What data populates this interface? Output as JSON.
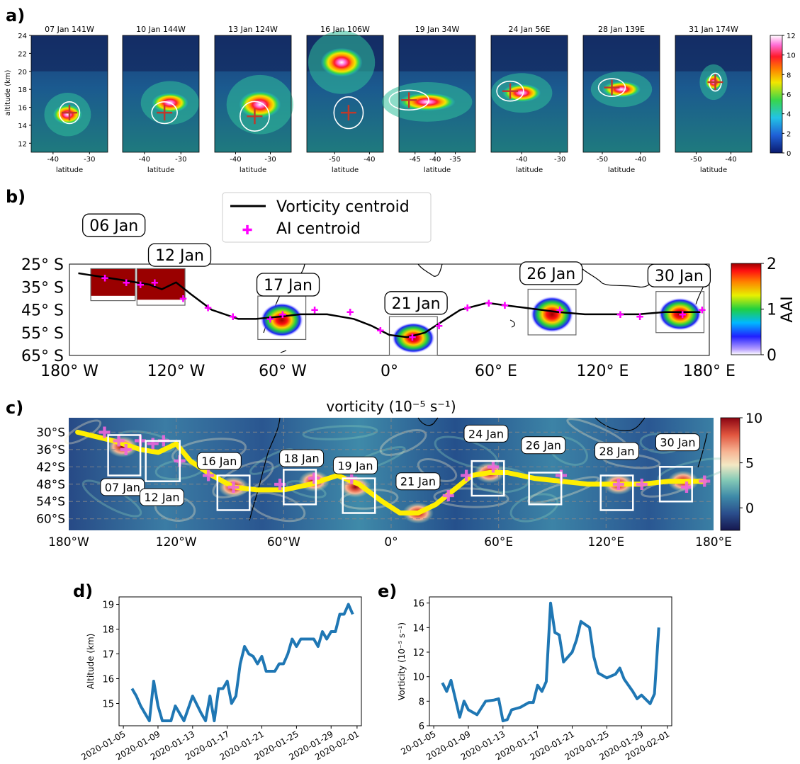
{
  "panel_labels": [
    "a)",
    "b)",
    "c)",
    "d)",
    "e)"
  ],
  "colors": {
    "line_blue": "#1f77b4",
    "track_yellow": "#ffee00",
    "ai_magenta": "#ff00ff",
    "cross_red": "#c0392b"
  },
  "chart_data": [
    {
      "id": "a",
      "type": "heatmap",
      "ylabel": "altitude (km)",
      "xlabel": "latitude",
      "ylim": [
        11,
        24
      ],
      "yticks": [
        12,
        14,
        16,
        18,
        20,
        22,
        24
      ],
      "colorbar": {
        "ticks": [
          0,
          2,
          4,
          6,
          8,
          10,
          12
        ]
      },
      "subplots": [
        {
          "title": "07 Jan   141W",
          "xlim": [
            -46,
            -25
          ],
          "xticks": [
            -40,
            -30
          ],
          "cross": [
            -35.5,
            15.4
          ],
          "plume": [
            -36,
            15.2,
            4,
            1.1
          ]
        },
        {
          "title": "10 Jan   144W",
          "xlim": [
            -46,
            -25
          ],
          "xticks": [
            -40,
            -30
          ],
          "cross": [
            -34.5,
            15.4
          ],
          "plume": [
            -33,
            16.5,
            5,
            1.1
          ]
        },
        {
          "title": "13 Jan   124W",
          "xlim": [
            -46,
            -24
          ],
          "xticks": [
            -40,
            -30
          ],
          "cross": [
            -34.5,
            15.0
          ],
          "plume": [
            -33,
            16.3,
            6,
            1.5
          ]
        },
        {
          "title": "16 Jan   106W",
          "xlim": [
            -58,
            -36
          ],
          "xticks": [
            -50,
            -40
          ],
          "cross": [
            -46,
            15.4
          ],
          "plume": [
            -48,
            21,
            6,
            1.6
          ]
        },
        {
          "title": "19 Jan   34W",
          "xlim": [
            -49,
            -30
          ],
          "xticks": [
            -45,
            -40,
            -35
          ],
          "cross": [
            -46.5,
            16.8
          ],
          "plume": [
            -42,
            16.6,
            7,
            1.0
          ]
        },
        {
          "title": "24 Jan   56E",
          "xlim": [
            -48,
            -28
          ],
          "xticks": [
            -40,
            -30
          ],
          "cross": [
            -43,
            17.8
          ],
          "plume": [
            -40,
            17.6,
            5,
            1.0
          ]
        },
        {
          "title": "28 Jan   139E",
          "xlim": [
            -55,
            -35
          ],
          "xticks": [
            -50,
            -40
          ],
          "cross": [
            -47.5,
            18.2
          ],
          "plume": [
            -45,
            18.0,
            5,
            0.9
          ]
        },
        {
          "title": "31 Jan   174W",
          "xlim": [
            -56,
            -34
          ],
          "xticks": [
            -50,
            -40
          ],
          "cross": [
            -44.5,
            18.8
          ],
          "plume": [
            -45,
            18.8,
            2.5,
            0.9
          ]
        }
      ]
    },
    {
      "id": "b",
      "type": "line",
      "xticks": [
        "180° W",
        "120° W",
        "60° W",
        "0°",
        "60° E",
        "120° E",
        "180° E"
      ],
      "yticks": [
        "25° S",
        "35° S",
        "45° S",
        "55° S",
        "65° S"
      ],
      "xlim": [
        -180,
        180
      ],
      "ylim": [
        -65,
        -25
      ],
      "legend": {
        "placement": "top-center",
        "entries": [
          "Vorticity centroid",
          "AI centroid"
        ]
      },
      "colorbar": {
        "label": "AAI",
        "ticks": [
          0,
          1,
          2
        ]
      },
      "series": [
        {
          "name": "Vorticity centroid",
          "x": [
            -175,
            -150,
            -135,
            -128,
            -120,
            -112,
            -100,
            -85,
            -75,
            -62,
            -50,
            -35,
            -20,
            -10,
            0,
            10,
            20,
            30,
            40,
            50,
            55,
            65,
            75,
            85,
            95,
            110,
            125,
            140,
            155,
            165,
            175
          ],
          "y": [
            -29,
            -32,
            -34,
            -36,
            -33,
            -38,
            -45,
            -49,
            -49,
            -48,
            -47,
            -47,
            -49,
            -52,
            -56,
            -57,
            -55,
            -50,
            -45,
            -43,
            -42,
            -43,
            -44,
            -45,
            -46,
            -47,
            -47,
            -47,
            -46,
            -46,
            -46
          ]
        },
        {
          "name": "AI centroid",
          "x": [
            -160,
            -148,
            -140,
            -132,
            -116,
            -102,
            -88,
            -67,
            -60,
            -42,
            -22,
            -5,
            13,
            28,
            44,
            56,
            65,
            96,
            130,
            141,
            165,
            176
          ],
          "y": [
            -31,
            -33,
            -34,
            -33,
            -40,
            -44,
            -48,
            -49,
            -47,
            -45,
            -46,
            -54,
            -57,
            -52,
            -44,
            -42,
            -43,
            -45,
            -47,
            -48,
            -47,
            -45
          ]
        }
      ],
      "date_labels": [
        {
          "text": "06 Jan",
          "x": -155,
          "y": -8
        },
        {
          "text": "12 Jan",
          "x": -118,
          "y": -21
        },
        {
          "text": "17 Jan",
          "x": -57,
          "y": -34
        },
        {
          "text": "21 Jan",
          "x": 15,
          "y": -42
        },
        {
          "text": "26 Jan",
          "x": 91,
          "y": -29
        },
        {
          "text": "30 Jan",
          "x": 163,
          "y": -30
        }
      ],
      "boxes": [
        {
          "lon": [
            -168,
            -143
          ],
          "lat": [
            -27,
            -41
          ]
        },
        {
          "lon": [
            -142,
            -115
          ],
          "lat": [
            -27,
            -43
          ]
        },
        {
          "lon": [
            -74,
            -47
          ],
          "lat": [
            -39,
            -58
          ]
        },
        {
          "lon": [
            0,
            27
          ],
          "lat": [
            -48,
            -65
          ]
        },
        {
          "lon": [
            78,
            105
          ],
          "lat": [
            -36,
            -56
          ]
        },
        {
          "lon": [
            150,
            177
          ],
          "lat": [
            -37,
            -55
          ]
        }
      ]
    },
    {
      "id": "c",
      "type": "heatmap",
      "title": "vorticity (10⁻⁵ s⁻¹)",
      "xticks": [
        "180°W",
        "120°W",
        "60°W",
        "0°",
        "60°E",
        "120°E",
        "180°E"
      ],
      "yticks": [
        "30°S",
        "36°S",
        "42°S",
        "48°S",
        "54°S",
        "60°S"
      ],
      "xlim": [
        -180,
        180
      ],
      "ylim": [
        -64,
        -25
      ],
      "colorbar": {
        "ticks": [
          10,
          5,
          0
        ]
      },
      "track": {
        "x": [
          -175,
          -155,
          -140,
          -130,
          -120,
          -112,
          -100,
          -88,
          -75,
          -60,
          -45,
          -30,
          -18,
          -5,
          5,
          15,
          25,
          35,
          45,
          55,
          65,
          80,
          95,
          110,
          125,
          140,
          155,
          165,
          175
        ],
        "y": [
          -30,
          -33,
          -36,
          -37,
          -34,
          -40,
          -45,
          -49,
          -50,
          -50,
          -48,
          -45,
          -48,
          -54,
          -58,
          -58,
          -55,
          -50,
          -45,
          -44,
          -44,
          -46,
          -47,
          -48,
          -48,
          -48,
          -47,
          -47,
          -47
        ]
      },
      "crosses": {
        "x": [
          -160,
          -152,
          -148,
          -140,
          -133,
          -127,
          -118,
          -102,
          -88,
          -62,
          -43,
          -22,
          32,
          42,
          57,
          95,
          127,
          140,
          165,
          175
        ],
        "y": [
          -30,
          -33,
          -36,
          -33,
          -34,
          -33,
          -40,
          -45,
          -49,
          -48,
          -46,
          -46,
          -52,
          -45,
          -42,
          -45,
          -48,
          -48,
          -49,
          -47
        ]
      },
      "date_labels": [
        {
          "text": "07 Jan",
          "x": -150,
          "y": -49
        },
        {
          "text": "12 Jan",
          "x": -128,
          "y": -52.5
        },
        {
          "text": "16 Jan",
          "x": -96,
          "y": -40
        },
        {
          "text": "18 Jan",
          "x": -50,
          "y": -39
        },
        {
          "text": "19 Jan",
          "x": -20,
          "y": -41.5
        },
        {
          "text": "21 Jan",
          "x": 15,
          "y": -47
        },
        {
          "text": "24 Jan",
          "x": 53,
          "y": -30.5
        },
        {
          "text": "26 Jan",
          "x": 85,
          "y": -34.5
        },
        {
          "text": "28 Jan",
          "x": 126,
          "y": -36.5
        },
        {
          "text": "30 Jan",
          "x": 160,
          "y": -33.5
        }
      ],
      "boxes": [
        {
          "lon": [
            -158,
            -140
          ],
          "lat": [
            -31,
            -45
          ]
        },
        {
          "lon": [
            -137,
            -118
          ],
          "lat": [
            -33,
            -47
          ]
        },
        {
          "lon": [
            -97,
            -79
          ],
          "lat": [
            -45,
            -57
          ]
        },
        {
          "lon": [
            -60,
            -42
          ],
          "lat": [
            -43,
            -55
          ]
        },
        {
          "lon": [
            -27,
            -9
          ],
          "lat": [
            -46,
            -58
          ]
        },
        {
          "lon": [
            45,
            63
          ],
          "lat": [
            -40,
            -52
          ]
        },
        {
          "lon": [
            77,
            95
          ],
          "lat": [
            -44,
            -55
          ]
        },
        {
          "lon": [
            117,
            135
          ],
          "lat": [
            -45,
            -57
          ]
        },
        {
          "lon": [
            150,
            168
          ],
          "lat": [
            -42,
            -54
          ]
        }
      ]
    },
    {
      "id": "d",
      "type": "line",
      "ylabel": "Altitude (km)",
      "ylim": [
        14.1,
        19.3
      ],
      "yticks": [
        15,
        16,
        17,
        18,
        19
      ],
      "xtick_labels": [
        "2020-01-05",
        "2020-01-09",
        "2020-01-13",
        "2020-01-17",
        "2020-01-21",
        "2020-01-25",
        "2020-01-29",
        "2020-02-01"
      ],
      "series": [
        {
          "x": [
            "2020-01-06",
            "2020-01-06",
            "2020-01-07",
            "2020-01-07",
            "2020-01-08",
            "2020-01-08",
            "2020-01-09",
            "2020-01-09",
            "2020-01-10",
            "2020-01-10",
            "2020-01-11",
            "2020-01-12",
            "2020-01-13",
            "2020-01-14",
            "2020-01-14",
            "2020-01-15",
            "2020-01-15",
            "2020-01-16",
            "2020-01-16",
            "2020-01-17",
            "2020-01-17",
            "2020-01-18",
            "2020-01-18",
            "2020-01-19",
            "2020-01-19",
            "2020-01-20",
            "2020-01-20",
            "2020-01-21",
            "2020-01-21",
            "2020-01-22",
            "2020-01-22",
            "2020-01-23",
            "2020-01-23",
            "2020-01-24",
            "2020-01-24",
            "2020-01-25",
            "2020-01-25",
            "2020-01-26",
            "2020-01-26",
            "2020-01-27",
            "2020-01-27",
            "2020-01-28",
            "2020-01-28",
            "2020-01-29",
            "2020-01-29",
            "2020-01-30",
            "2020-01-30",
            "2020-01-31",
            "2020-01-31"
          ],
          "y": [
            15.6,
            15.3,
            14.9,
            14.6,
            14.3,
            15.9,
            14.9,
            14.3,
            14.3,
            14.3,
            14.9,
            14.3,
            15.3,
            14.6,
            14.3,
            15.3,
            14.3,
            15.6,
            15.6,
            15.9,
            15.0,
            15.3,
            16.6,
            17.3,
            17.0,
            16.9,
            16.6,
            16.9,
            16.3,
            16.3,
            16.3,
            16.6,
            16.6,
            17.0,
            17.6,
            17.3,
            17.6,
            17.6,
            17.6,
            17.6,
            17.3,
            17.9,
            17.6,
            17.9,
            17.9,
            18.6,
            18.6,
            19.0,
            18.6
          ]
        }
      ]
    },
    {
      "id": "e",
      "type": "line",
      "ylabel": "Vorticity (10⁻⁵ s⁻¹)",
      "ylim": [
        6,
        16.5
      ],
      "yticks": [
        6,
        8,
        10,
        12,
        14,
        16
      ],
      "xtick_labels": [
        "20-01-05",
        "2020-01-09",
        "2020-01-13",
        "2020-01-17",
        "2020-01-21",
        "2020-01-25",
        "2020-01-29",
        "2020-02-01"
      ],
      "series": [
        {
          "x": [
            "2020-01-06",
            "2020-01-06",
            "2020-01-07",
            "2020-01-08",
            "2020-01-08",
            "2020-01-09",
            "2020-01-10",
            "2020-01-11",
            "2020-01-12",
            "2020-01-12",
            "2020-01-13",
            "2020-01-13",
            "2020-01-14",
            "2020-01-15",
            "2020-01-16",
            "2020-01-16",
            "2020-01-17",
            "2020-01-17",
            "2020-01-18",
            "2020-01-18",
            "2020-01-19",
            "2020-01-19",
            "2020-01-20",
            "2020-01-21",
            "2020-01-21",
            "2020-01-22",
            "2020-01-23",
            "2020-01-23",
            "2020-01-24",
            "2020-01-25",
            "2020-01-26",
            "2020-01-26",
            "2020-01-27",
            "2020-01-28",
            "2020-01-28",
            "2020-01-29",
            "2020-01-30",
            "2020-01-30",
            "2020-01-31"
          ],
          "y": [
            9.5,
            8.8,
            9.7,
            6.7,
            8.0,
            7.3,
            6.9,
            8.0,
            8.1,
            8.2,
            6.4,
            6.5,
            7.3,
            7.5,
            7.9,
            7.9,
            9.3,
            8.8,
            9.6,
            16.0,
            13.6,
            13.4,
            11.2,
            12.0,
            13.0,
            14.5,
            14.0,
            11.6,
            10.3,
            9.9,
            10.2,
            10.7,
            9.8,
            8.8,
            8.2,
            8.5,
            7.8,
            8.6,
            14.0
          ]
        }
      ]
    }
  ]
}
